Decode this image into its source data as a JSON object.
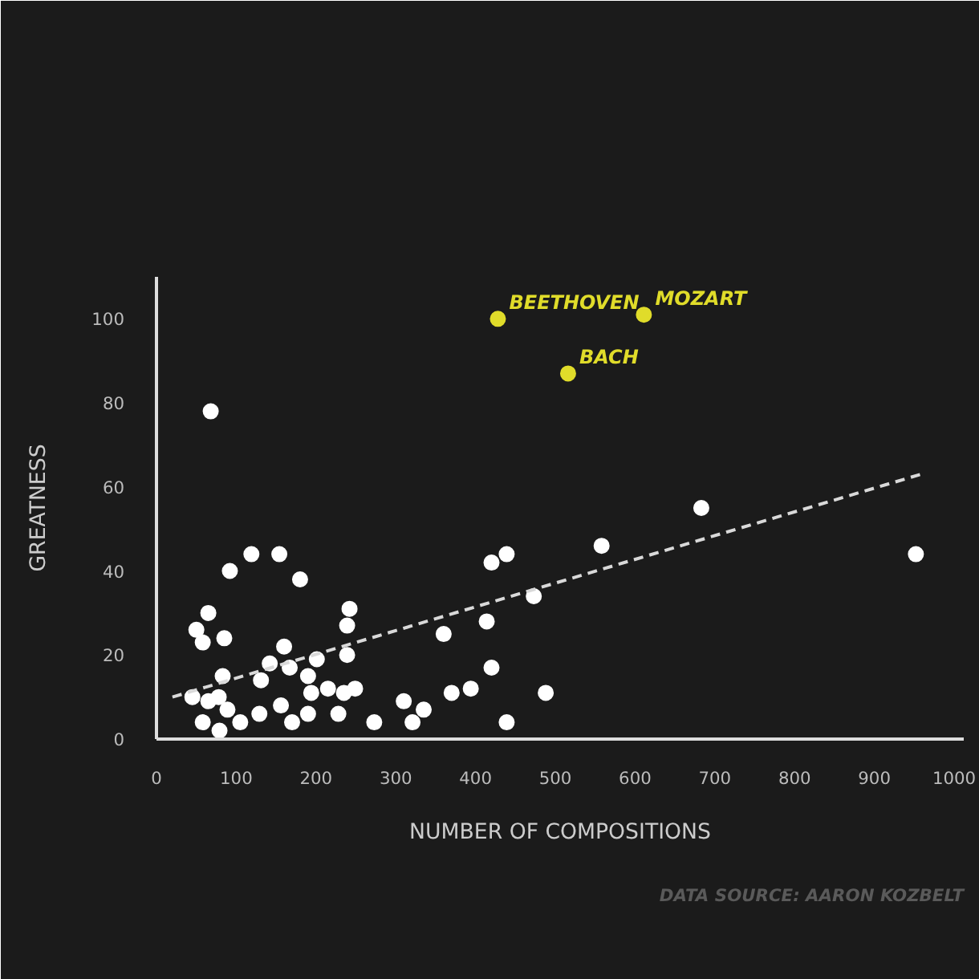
{
  "chart_data": {
    "type": "scatter",
    "xlabel": "NUMBER OF COMPOSITIONS",
    "ylabel": "GREATNESS",
    "xlim": [
      0,
      1012
    ],
    "ylim": [
      0,
      110
    ],
    "xticks": [
      0,
      100,
      200,
      300,
      400,
      500,
      600,
      700,
      800,
      900,
      1000
    ],
    "yticks": [
      0,
      20,
      40,
      60,
      80,
      100
    ],
    "grid": false,
    "marker": "circle",
    "series": [
      {
        "color": "#ffffff",
        "x": [
          68,
          92,
          119,
          154,
          180,
          65,
          50,
          58,
          85,
          242,
          239,
          360,
          160,
          142,
          201,
          239,
          167,
          83,
          131,
          190,
          194,
          215,
          235,
          249,
          45,
          65,
          78,
          89,
          58,
          79,
          105,
          129,
          156,
          170,
          190,
          228,
          273,
          310,
          321,
          335,
          370,
          394,
          420,
          439,
          488,
          414,
          473,
          420,
          439,
          558,
          683,
          952
        ],
        "values": [
          78,
          40,
          44,
          44,
          38,
          30,
          26,
          23,
          24,
          31,
          27,
          25,
          22,
          18,
          19,
          20,
          17,
          15,
          14,
          15,
          11,
          12,
          11,
          12,
          10,
          9,
          10,
          7,
          4,
          2,
          4,
          6,
          8,
          4,
          6,
          6,
          4,
          9,
          4,
          7,
          11,
          12,
          17,
          4,
          11,
          28,
          34,
          42,
          44,
          46,
          55,
          44
        ]
      },
      {
        "color": "#e0dc2a",
        "x": [
          428,
          611,
          516
        ],
        "values": [
          100,
          101,
          87
        ]
      },
      {
        "type": "line",
        "color": "#d9d9d9",
        "line_style": "dashed",
        "marker": "none",
        "x": [
          20,
          958
        ],
        "values": [
          10,
          63
        ]
      }
    ],
    "annotations": [
      {
        "text": "BEETHOVEN",
        "x": 428,
        "y": 100
      },
      {
        "text": "MOZART",
        "x": 611,
        "y": 101
      },
      {
        "text": "BACH",
        "x": 516,
        "y": 87
      },
      "DATA SOURCE: AARON KOZBELT"
    ]
  }
}
